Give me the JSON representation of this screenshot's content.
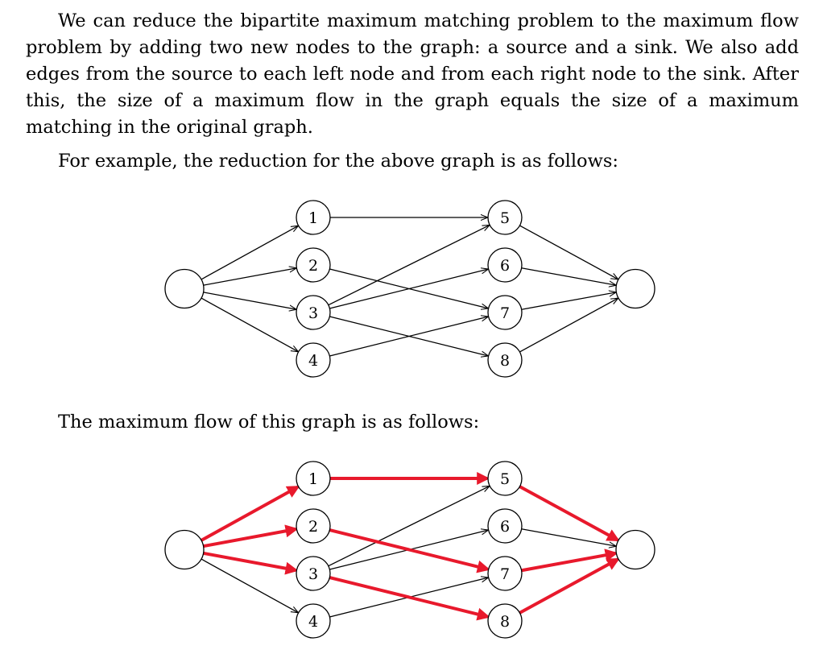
{
  "paragraphs": {
    "intro": "We can reduce the bipartite maximum matching problem to the maximum flow problem by adding two new nodes to the graph: a source and a sink. We also add edges from the source to each left node and from each right node to the sink. After this, the size of a maximum flow in the graph equals the size of a maximum matching in the original graph.",
    "example": "For example, the reduction for the above graph is as follows:",
    "maxflow": "The maximum flow of this graph is as follows:"
  },
  "colors": {
    "edge": "#000000",
    "flow": "#e8192c"
  },
  "graph": {
    "left_nodes": [
      "1",
      "2",
      "3",
      "4"
    ],
    "right_nodes": [
      "5",
      "6",
      "7",
      "8"
    ],
    "matching_edges": [
      [
        "1",
        "5"
      ],
      [
        "2",
        "7"
      ],
      [
        "3",
        "5"
      ],
      [
        "3",
        "6"
      ],
      [
        "3",
        "8"
      ],
      [
        "4",
        "7"
      ]
    ]
  },
  "flow_graph": {
    "flow_edges": [
      [
        "s",
        "1"
      ],
      [
        "s",
        "2"
      ],
      [
        "s",
        "3"
      ],
      [
        "1",
        "5"
      ],
      [
        "2",
        "7"
      ],
      [
        "3",
        "8"
      ],
      [
        "5",
        "t"
      ],
      [
        "7",
        "t"
      ],
      [
        "8",
        "t"
      ]
    ]
  }
}
